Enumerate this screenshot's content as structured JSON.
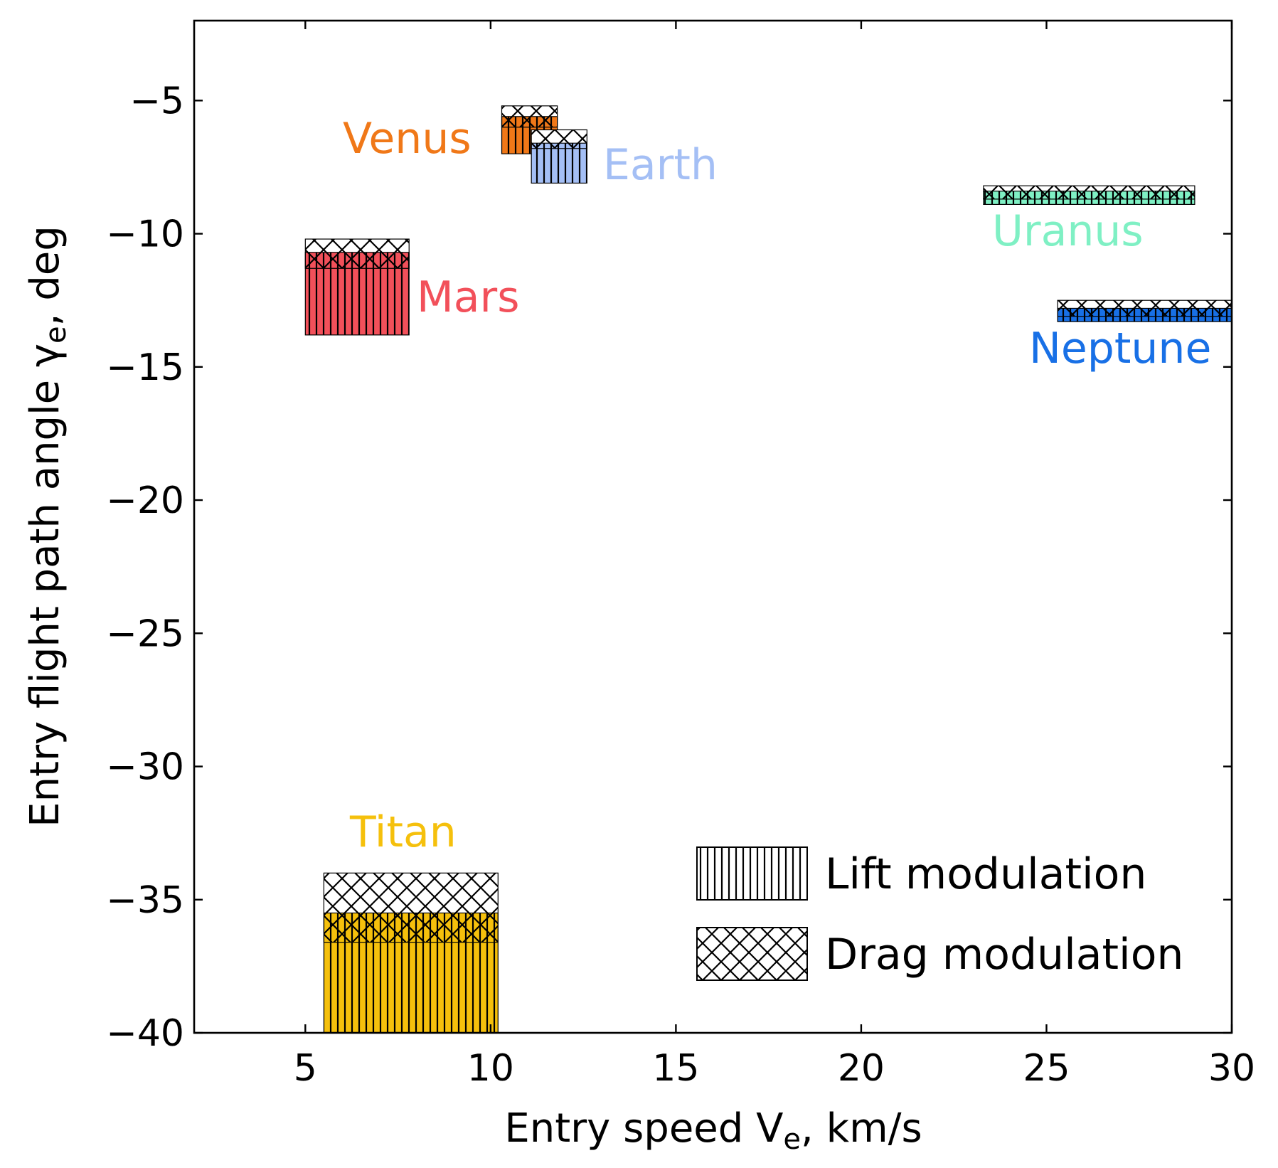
{
  "chart_data": {
    "type": "range-rectangles",
    "xlabel": {
      "main": "Entry speed V",
      "sub": "e",
      "unit": ", km/s"
    },
    "ylabel": {
      "main": "Entry flight path angle γ",
      "sub": "e",
      "unit": ", deg"
    },
    "xlim": [
      2,
      30
    ],
    "ylim": [
      -40,
      -2
    ],
    "xticks": [
      5,
      10,
      15,
      20,
      25,
      30
    ],
    "yticks": [
      -5,
      -10,
      -15,
      -20,
      -25,
      -30,
      -35,
      -40
    ],
    "ytick_labels": [
      "−5",
      "−10",
      "−15",
      "−20",
      "−25",
      "−30",
      "−35",
      "−40"
    ],
    "grid": false,
    "series": [
      {
        "name": "Venus",
        "color": "#f07818",
        "lift": {
          "x": [
            10.3,
            11.8
          ],
          "y": [
            -7.0,
            -5.6
          ]
        },
        "drag": {
          "x": [
            10.3,
            11.8
          ],
          "y": [
            -6.0,
            -5.2
          ]
        }
      },
      {
        "name": "Earth",
        "color": "#a4bff5",
        "lift": {
          "x": [
            11.1,
            12.6
          ],
          "y": [
            -8.1,
            -6.6
          ]
        },
        "drag": {
          "x": [
            11.1,
            12.6
          ],
          "y": [
            -6.8,
            -6.1
          ]
        }
      },
      {
        "name": "Mars",
        "color": "#f2505a",
        "lift": {
          "x": [
            5.0,
            7.8
          ],
          "y": [
            -13.8,
            -10.7
          ]
        },
        "drag": {
          "x": [
            5.0,
            7.8
          ],
          "y": [
            -11.3,
            -10.2
          ]
        }
      },
      {
        "name": "Uranus",
        "color": "#7ff0c4",
        "lift": {
          "x": [
            23.3,
            29.0
          ],
          "y": [
            -8.9,
            -8.4
          ]
        },
        "drag": {
          "x": [
            23.3,
            29.0
          ],
          "y": [
            -8.7,
            -8.2
          ]
        }
      },
      {
        "name": "Neptune",
        "color": "#1870e6",
        "lift": {
          "x": [
            25.3,
            30.0
          ],
          "y": [
            -13.3,
            -12.8
          ]
        },
        "drag": {
          "x": [
            25.3,
            30.0
          ],
          "y": [
            -13.1,
            -12.5
          ]
        }
      },
      {
        "name": "Titan",
        "color": "#f5c00c",
        "lift": {
          "x": [
            5.5,
            10.2
          ],
          "y": [
            -40.0,
            -35.5
          ]
        },
        "drag": {
          "x": [
            5.5,
            10.2
          ],
          "y": [
            -36.6,
            -34.0
          ]
        }
      }
    ],
    "legend": {
      "placement": "lower-right",
      "items": [
        {
          "label": "Lift modulation",
          "hatch": "vertical"
        },
        {
          "label": "Drag modulation",
          "hatch": "cross"
        }
      ]
    }
  }
}
